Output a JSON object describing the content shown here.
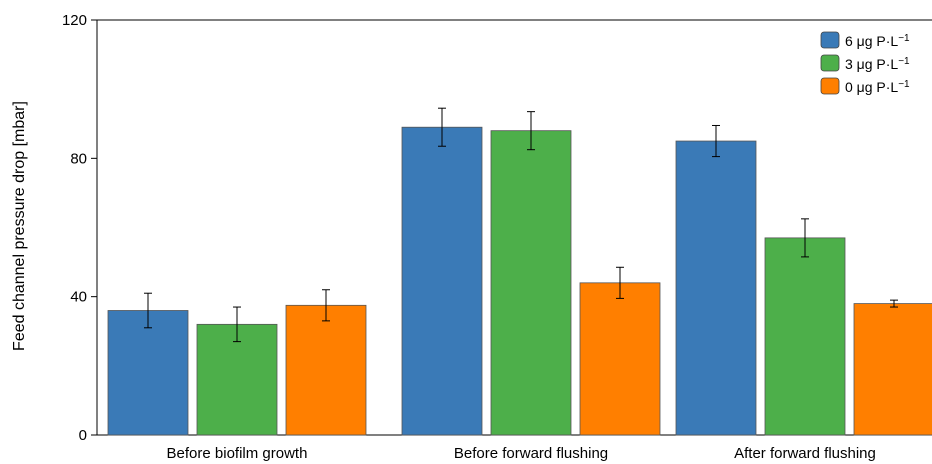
{
  "chart_data": {
    "type": "bar",
    "title": "",
    "xlabel": "",
    "ylabel": "Feed channel pressure drop [mbar]",
    "ylim": [
      0,
      120
    ],
    "yticks": [
      0,
      40,
      80,
      120
    ],
    "categories": [
      "Before biofilm growth",
      "Before forward flushing",
      "After forward flushing"
    ],
    "series": [
      {
        "name_text": "6 μg P·L",
        "name_sup": "−1",
        "color": "#3a7ab7",
        "values": [
          36,
          89,
          85
        ],
        "errors": [
          5,
          5.5,
          4.5
        ]
      },
      {
        "name_text": "3 μg P·L",
        "name_sup": "−1",
        "color": "#4daf4a",
        "values": [
          32,
          88,
          57
        ],
        "errors": [
          5,
          5.5,
          5.5
        ]
      },
      {
        "name_text": "0 μg P·L",
        "name_sup": "−1",
        "color": "#ff7f00",
        "values": [
          37.5,
          44,
          38
        ],
        "errors": [
          4.5,
          4.5,
          1
        ]
      }
    ],
    "legend": "top-right",
    "grid": false
  }
}
